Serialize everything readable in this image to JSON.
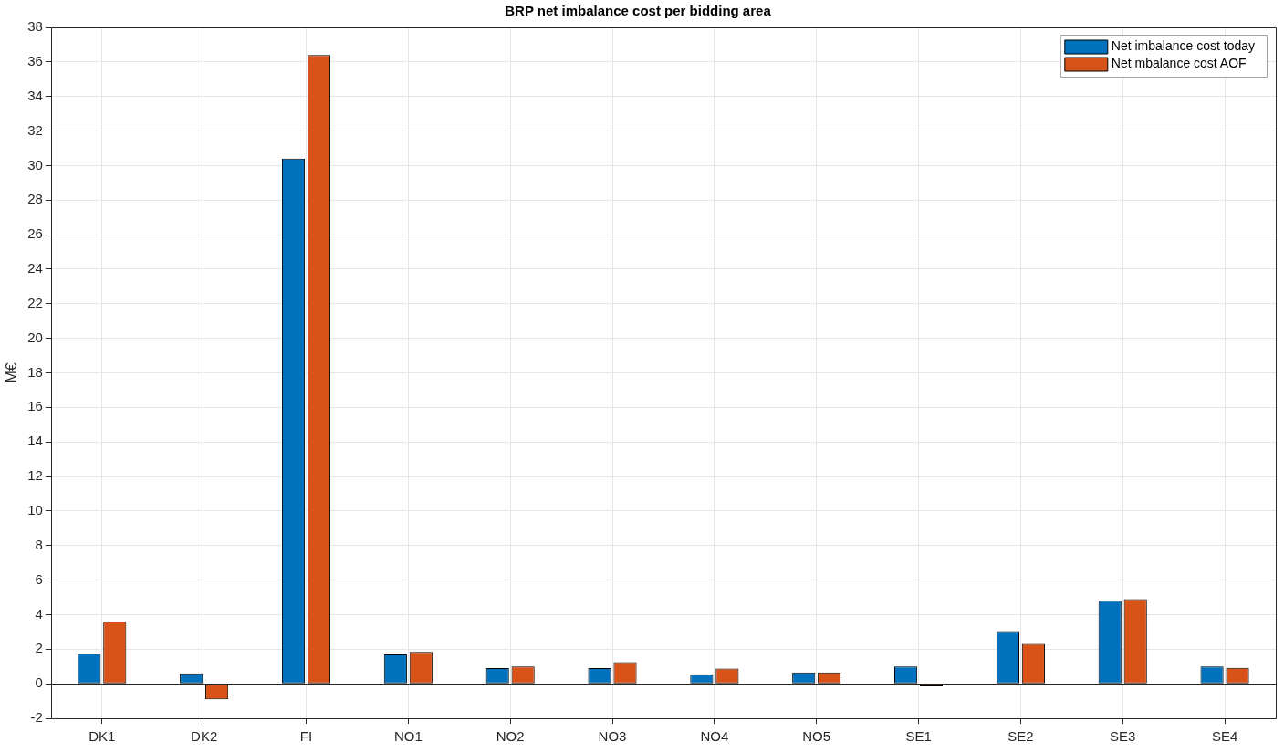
{
  "chart_data": {
    "type": "bar",
    "title": "BRP net imbalance cost per bidding area",
    "ylabel": "M€",
    "categories": [
      "DK1",
      "DK2",
      "FI",
      "NO1",
      "NO2",
      "NO3",
      "NO4",
      "NO5",
      "SE1",
      "SE2",
      "SE3",
      "SE4"
    ],
    "series": [
      {
        "name": "Net imbalance cost today",
        "color": "#0072bd",
        "values": [
          1.75,
          0.6,
          30.4,
          1.7,
          0.9,
          0.9,
          0.55,
          0.65,
          1.0,
          3.05,
          4.8,
          1.0
        ]
      },
      {
        "name": "Net mbalance cost AOF",
        "color": "#d95319",
        "values": [
          3.6,
          -0.9,
          36.4,
          1.85,
          1.0,
          1.25,
          0.88,
          0.65,
          -0.15,
          2.3,
          4.9,
          0.92
        ]
      }
    ],
    "ylim": [
      -2,
      38
    ],
    "yticks": [
      -2,
      0,
      2,
      4,
      6,
      8,
      10,
      12,
      14,
      16,
      18,
      20,
      22,
      24,
      26,
      28,
      30,
      32,
      34,
      36,
      38
    ],
    "grid": true,
    "legend": "top right"
  }
}
